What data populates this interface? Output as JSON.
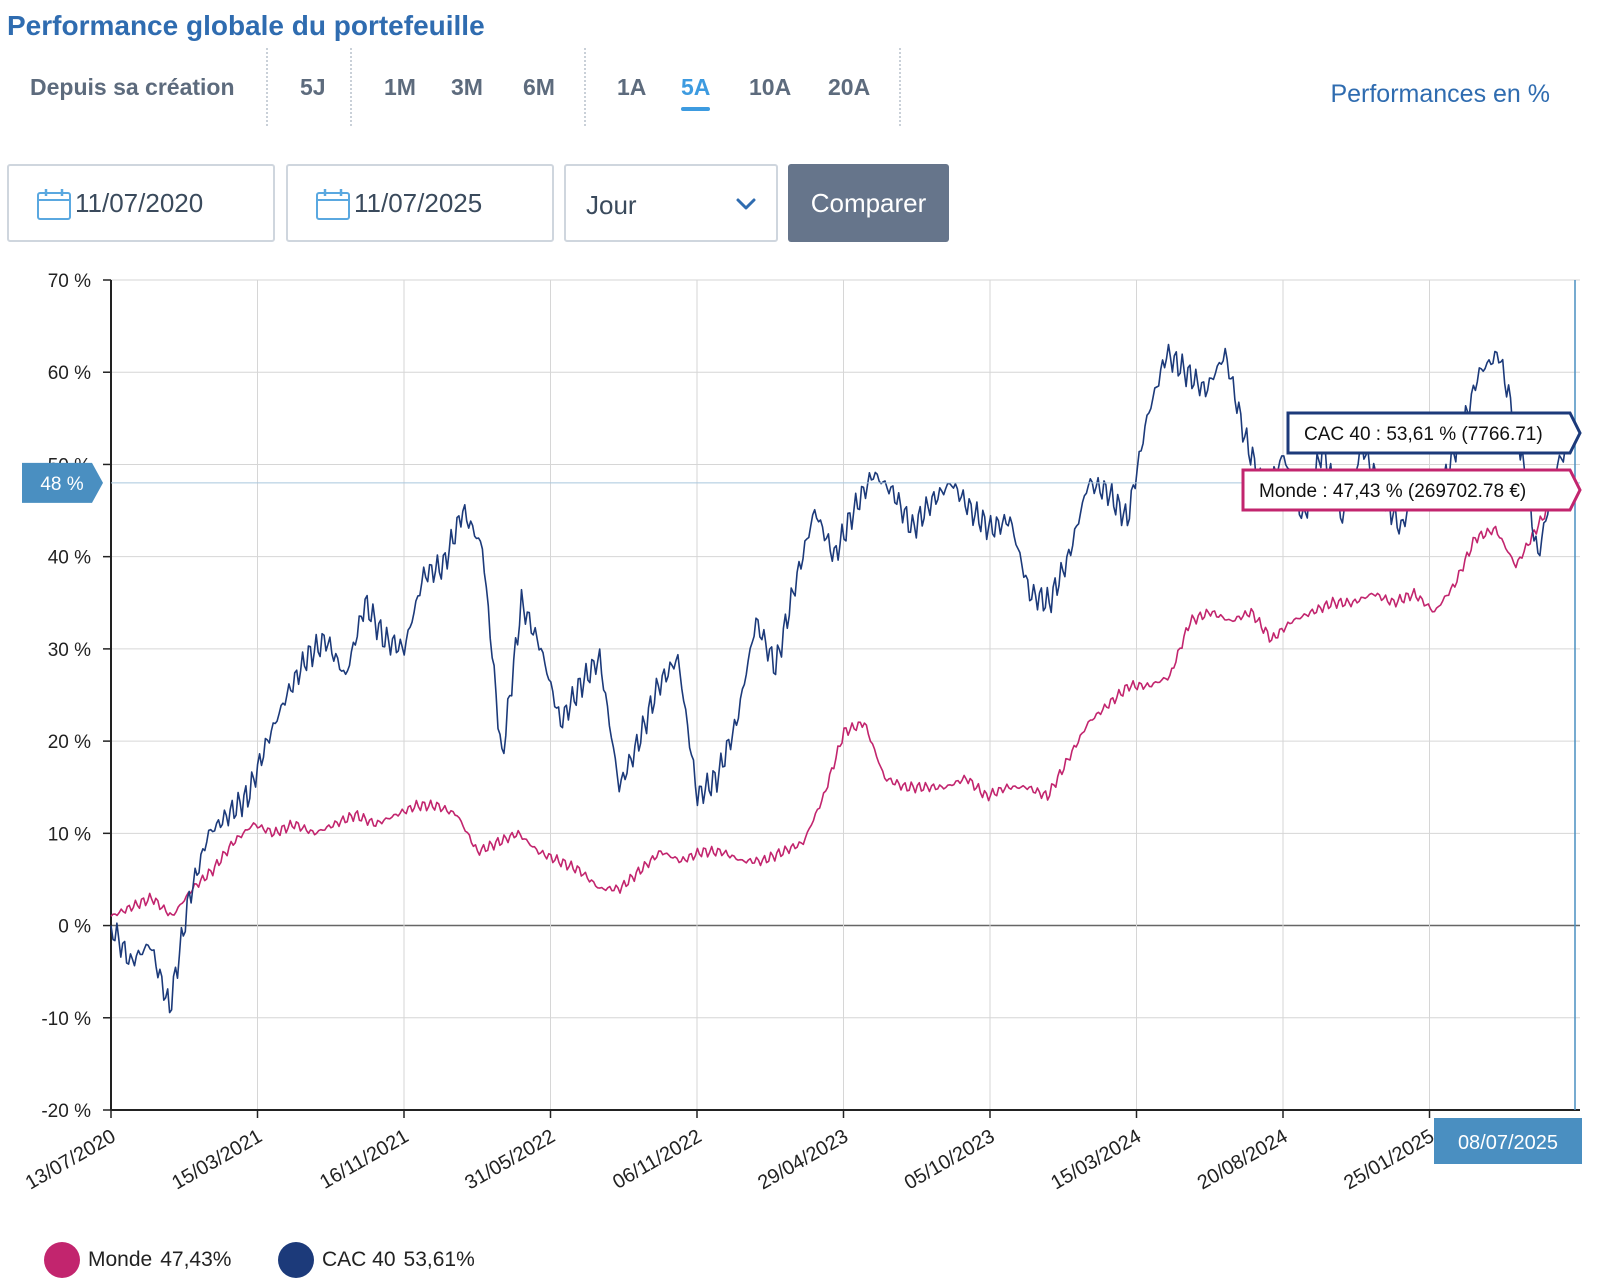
{
  "header": {
    "title": "Performance globale du portefeuille",
    "ranges": [
      {
        "label": "Depuis sa création",
        "active": false
      },
      {
        "label": "5J",
        "active": false
      },
      {
        "label": "1M",
        "active": false
      },
      {
        "label": "3M",
        "active": false
      },
      {
        "label": "6M",
        "active": false
      },
      {
        "label": "1A",
        "active": false
      },
      {
        "label": "5A",
        "active": true
      },
      {
        "label": "10A",
        "active": false
      },
      {
        "label": "20A",
        "active": false
      }
    ],
    "unit_label": "Performances en %"
  },
  "controls": {
    "start_date": "11/07/2020",
    "end_date": "11/07/2025",
    "frequency": "Jour",
    "compare_label": "Comparer"
  },
  "colors": {
    "monde": "#c2256e",
    "cac40": "#1c3a7a",
    "accent": "#3d9be0",
    "crosshair_badge": "#4a8fc1"
  },
  "chart_data": {
    "type": "line",
    "title": "",
    "xlabel": "",
    "ylabel": "",
    "ylim": [
      -20,
      70
    ],
    "y_ticks": [
      "-20 %",
      "-10 %",
      "0 %",
      "10 %",
      "20 %",
      "30 %",
      "40 %",
      "50 %",
      "60 %",
      "70 %"
    ],
    "x_ticks": [
      "13/07/2020",
      "15/03/2021",
      "16/11/2021",
      "31/05/2022",
      "06/11/2022",
      "29/04/2023",
      "05/10/2023",
      "15/03/2024",
      "20/08/2024",
      "25/01/2025"
    ],
    "grid": true,
    "series": [
      {
        "name": "Monde",
        "legend_value": "47,43%",
        "color": "#c2256e",
        "values": [
          1,
          2,
          3,
          1,
          4,
          6,
          9,
          11,
          10,
          11,
          10,
          11,
          12,
          11,
          12,
          13,
          13,
          12,
          8,
          9,
          10,
          8,
          7,
          6,
          4,
          4,
          6,
          8,
          7,
          8,
          8,
          7,
          7,
          8,
          9,
          14,
          21,
          22,
          16,
          15,
          15,
          15,
          16,
          14,
          15,
          15,
          14,
          18,
          22,
          24,
          26,
          26,
          27,
          33,
          34,
          33,
          34,
          31,
          33,
          34,
          35,
          35,
          36,
          35,
          36,
          34,
          37,
          42,
          43,
          39,
          43,
          47,
          47.43
        ]
      },
      {
        "name": "CAC 40",
        "legend_value": "53,61%",
        "color": "#1c3a7a",
        "values": [
          0,
          -4,
          -2,
          -9,
          3,
          10,
          12,
          14,
          20,
          25,
          29,
          31,
          27,
          35,
          31,
          30,
          38,
          39,
          45,
          41,
          18,
          35,
          30,
          22,
          26,
          29,
          15,
          20,
          26,
          29,
          14,
          16,
          22,
          33,
          28,
          37,
          45,
          40,
          45,
          49,
          47,
          43,
          46,
          48,
          45,
          43,
          44,
          36,
          35,
          40,
          48,
          47,
          44,
          55,
          62,
          60,
          58,
          62,
          53,
          47,
          51,
          44,
          52,
          44,
          52,
          47,
          43,
          49,
          47,
          53,
          60,
          62,
          53,
          40,
          50,
          53.61
        ]
      }
    ],
    "crosshair": {
      "y_label": "48 %",
      "x_label": "08/07/2025",
      "tooltips": [
        {
          "series": "CAC 40",
          "text": "CAC 40 : 53,61 % (7766.71)"
        },
        {
          "series": "Monde",
          "text": "Monde : 47,43 % (269702.78 €)"
        }
      ]
    }
  }
}
